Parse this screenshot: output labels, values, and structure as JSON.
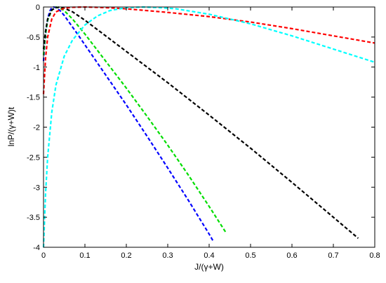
{
  "chart_data": {
    "type": "line",
    "title": "",
    "xlabel": "J/(γ+W)",
    "ylabel": "lnP/(γ+W)t",
    "xlim": [
      0,
      0.8
    ],
    "ylim": [
      -4,
      0
    ],
    "xticks": [
      0,
      0.1,
      0.2,
      0.3,
      0.4,
      0.5,
      0.6,
      0.7,
      0.8
    ],
    "xtick_labels": [
      "0",
      "0.1",
      "0.2",
      "0.3",
      "0.4",
      "0.5",
      "0.6",
      "0.7",
      "0.8"
    ],
    "yticks": [
      0,
      -0.5,
      -1,
      -1.5,
      -2,
      -2.5,
      -3,
      -3.5,
      -4
    ],
    "ytick_labels": [
      "0",
      "-0.5",
      "-1",
      "-1.5",
      "-2",
      "-2.5",
      "-3",
      "-3.5",
      "-4"
    ],
    "grid": false,
    "legend": "none",
    "series": [
      {
        "color": "#0000ff",
        "x": [
          0.0,
          0.003,
          0.006,
          0.01,
          0.015,
          0.02,
          0.025,
          0.03,
          0.04,
          0.05,
          0.08,
          0.1,
          0.15,
          0.2,
          0.25,
          0.3,
          0.35,
          0.4,
          0.41
        ],
        "y": [
          -0.9,
          -0.6,
          -0.4,
          -0.2,
          -0.07,
          -0.01,
          0.0,
          -0.01,
          -0.06,
          -0.14,
          -0.43,
          -0.63,
          -1.13,
          -1.63,
          -2.15,
          -2.68,
          -3.22,
          -3.78,
          -3.9
        ]
      },
      {
        "color": "#00dd00",
        "x": [
          0.0,
          0.005,
          0.01,
          0.02,
          0.03,
          0.04,
          0.05,
          0.07,
          0.1,
          0.15,
          0.2,
          0.25,
          0.3,
          0.35,
          0.4,
          0.44
        ],
        "y": [
          -0.8,
          -0.45,
          -0.22,
          -0.05,
          0.0,
          -0.02,
          -0.06,
          -0.2,
          -0.45,
          -0.9,
          -1.35,
          -1.82,
          -2.3,
          -2.8,
          -3.32,
          -3.75
        ]
      },
      {
        "color": "#000000",
        "x": [
          0.0,
          0.005,
          0.01,
          0.02,
          0.03,
          0.04,
          0.05,
          0.07,
          0.1,
          0.15,
          0.2,
          0.3,
          0.4,
          0.5,
          0.6,
          0.7,
          0.76
        ],
        "y": [
          -0.7,
          -0.4,
          -0.2,
          -0.05,
          -0.01,
          0.0,
          -0.02,
          -0.08,
          -0.22,
          -0.48,
          -0.74,
          -1.26,
          -1.8,
          -2.35,
          -2.92,
          -3.5,
          -3.85
        ]
      },
      {
        "color": "#ff0000",
        "x": [
          0.0,
          0.005,
          0.01,
          0.02,
          0.03,
          0.05,
          0.07,
          0.1,
          0.15,
          0.2,
          0.3,
          0.4,
          0.5,
          0.6,
          0.7,
          0.8
        ],
        "y": [
          -1.45,
          -0.85,
          -0.5,
          -0.2,
          -0.08,
          -0.02,
          -0.005,
          0.0,
          -0.01,
          -0.03,
          -0.09,
          -0.16,
          -0.25,
          -0.36,
          -0.48,
          -0.6
        ]
      },
      {
        "color": "#00ffff",
        "x": [
          0.0,
          0.005,
          0.01,
          0.02,
          0.03,
          0.05,
          0.07,
          0.1,
          0.13,
          0.16,
          0.2,
          0.24,
          0.28,
          0.32,
          0.4,
          0.5,
          0.6,
          0.7,
          0.8
        ],
        "y": [
          -4.0,
          -3.1,
          -2.5,
          -1.75,
          -1.3,
          -0.82,
          -0.55,
          -0.3,
          -0.15,
          -0.06,
          -0.01,
          0.0,
          -0.01,
          -0.03,
          -0.12,
          -0.28,
          -0.48,
          -0.7,
          -0.92
        ]
      }
    ]
  }
}
